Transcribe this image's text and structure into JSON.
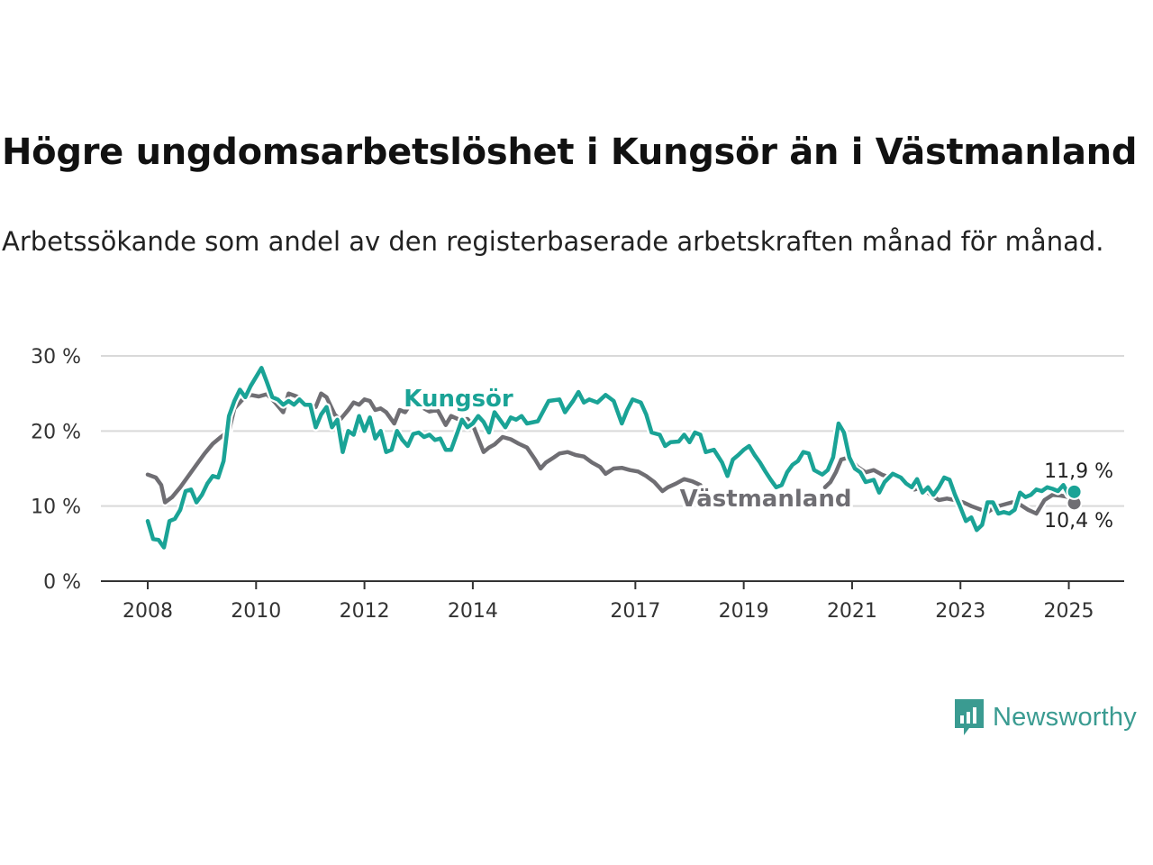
{
  "title": "Högre ungdomsarbetslöshet i Kungsör än i Västmanland",
  "subtitle": "Arbetssökande som andel av den registerbaserade arbetskraften månad för månad.",
  "brand": {
    "name": "Newsworthy",
    "icon": "newsworthy-logo-icon",
    "color": "#3a9b91"
  },
  "chart_data": {
    "type": "line",
    "title": "Högre ungdomsarbetslöshet i Kungsör än i Västmanland",
    "xlabel": "",
    "ylabel": "",
    "ylim": [
      0,
      30
    ],
    "yticks": [
      0,
      10,
      20,
      30
    ],
    "ytick_labels": [
      "0 %",
      "10 %",
      "20 %",
      "30 %"
    ],
    "xticks": [
      2008,
      2010,
      2012,
      2014,
      2017,
      2019,
      2021,
      2023,
      2025
    ],
    "xtick_labels": [
      "2008",
      "2010",
      "2012",
      "2014",
      "2017",
      "2019",
      "2021",
      "2023",
      "2025"
    ],
    "grid": true,
    "legend": "inline labels",
    "series": [
      {
        "name": "Kungsör",
        "color": "#1aa396",
        "end_label": "11,9 %",
        "points": [
          [
            2008.0,
            8.0
          ],
          [
            2008.1,
            5.6
          ],
          [
            2008.2,
            5.5
          ],
          [
            2008.3,
            4.5
          ],
          [
            2008.4,
            8.0
          ],
          [
            2008.5,
            8.3
          ],
          [
            2008.6,
            9.5
          ],
          [
            2008.7,
            12.0
          ],
          [
            2008.8,
            12.2
          ],
          [
            2008.9,
            10.5
          ],
          [
            2009.0,
            11.5
          ],
          [
            2009.1,
            13.0
          ],
          [
            2009.2,
            14.0
          ],
          [
            2009.3,
            13.8
          ],
          [
            2009.4,
            16.0
          ],
          [
            2009.5,
            22.0
          ],
          [
            2009.6,
            24.0
          ],
          [
            2009.7,
            25.5
          ],
          [
            2009.8,
            24.5
          ],
          [
            2009.9,
            26.0
          ],
          [
            2010.0,
            27.2
          ],
          [
            2010.1,
            28.4
          ],
          [
            2010.2,
            26.5
          ],
          [
            2010.3,
            24.5
          ],
          [
            2010.4,
            24.2
          ],
          [
            2010.5,
            23.5
          ],
          [
            2010.6,
            24.0
          ],
          [
            2010.7,
            23.5
          ],
          [
            2010.8,
            24.2
          ],
          [
            2010.9,
            23.5
          ],
          [
            2011.0,
            23.5
          ],
          [
            2011.1,
            20.5
          ],
          [
            2011.2,
            22.2
          ],
          [
            2011.3,
            23.2
          ],
          [
            2011.4,
            20.5
          ],
          [
            2011.5,
            21.5
          ],
          [
            2011.6,
            17.2
          ],
          [
            2011.7,
            20.0
          ],
          [
            2011.8,
            19.5
          ],
          [
            2011.9,
            22.0
          ],
          [
            2012.0,
            20.0
          ],
          [
            2012.1,
            21.8
          ],
          [
            2012.2,
            19.0
          ],
          [
            2012.3,
            20.0
          ],
          [
            2012.4,
            17.2
          ],
          [
            2012.5,
            17.5
          ],
          [
            2012.6,
            20.0
          ],
          [
            2012.7,
            18.8
          ],
          [
            2012.8,
            18.0
          ],
          [
            2012.9,
            19.6
          ],
          [
            2013.0,
            19.8
          ],
          [
            2013.1,
            19.2
          ],
          [
            2013.2,
            19.5
          ],
          [
            2013.3,
            18.8
          ],
          [
            2013.4,
            19.0
          ],
          [
            2013.5,
            17.5
          ],
          [
            2013.6,
            17.5
          ],
          [
            2013.7,
            19.5
          ],
          [
            2013.8,
            21.5
          ],
          [
            2013.9,
            20.5
          ],
          [
            2014.0,
            21.0
          ],
          [
            2014.1,
            22.0
          ],
          [
            2014.2,
            21.2
          ],
          [
            2014.3,
            19.8
          ],
          [
            2014.4,
            22.5
          ],
          [
            2014.5,
            21.5
          ],
          [
            2014.6,
            20.5
          ],
          [
            2014.7,
            21.8
          ],
          [
            2014.8,
            21.5
          ],
          [
            2014.9,
            22.0
          ],
          [
            2015.0,
            21.0
          ],
          [
            2015.2,
            21.3
          ],
          [
            2015.4,
            24.0
          ],
          [
            2015.6,
            24.2
          ],
          [
            2015.7,
            22.5
          ],
          [
            2015.85,
            24.0
          ],
          [
            2015.95,
            25.2
          ],
          [
            2016.05,
            23.8
          ],
          [
            2016.15,
            24.2
          ],
          [
            2016.3,
            23.8
          ],
          [
            2016.45,
            24.8
          ],
          [
            2016.6,
            24.0
          ],
          [
            2016.75,
            21.0
          ],
          [
            2016.85,
            22.8
          ],
          [
            2016.95,
            24.2
          ],
          [
            2017.1,
            23.8
          ],
          [
            2017.2,
            22.2
          ],
          [
            2017.3,
            19.8
          ],
          [
            2017.45,
            19.5
          ],
          [
            2017.55,
            18.0
          ],
          [
            2017.65,
            18.5
          ],
          [
            2017.8,
            18.6
          ],
          [
            2017.9,
            19.5
          ],
          [
            2018.0,
            18.5
          ],
          [
            2018.1,
            19.8
          ],
          [
            2018.2,
            19.5
          ],
          [
            2018.3,
            17.2
          ],
          [
            2018.45,
            17.5
          ],
          [
            2018.6,
            15.8
          ],
          [
            2018.7,
            14.0
          ],
          [
            2018.8,
            16.2
          ],
          [
            2018.9,
            16.8
          ],
          [
            2019.0,
            17.5
          ],
          [
            2019.1,
            18.0
          ],
          [
            2019.2,
            16.8
          ],
          [
            2019.3,
            15.8
          ],
          [
            2019.4,
            14.6
          ],
          [
            2019.5,
            13.5
          ],
          [
            2019.6,
            12.5
          ],
          [
            2019.7,
            12.8
          ],
          [
            2019.8,
            14.5
          ],
          [
            2019.9,
            15.5
          ],
          [
            2020.0,
            16.0
          ],
          [
            2020.1,
            17.2
          ],
          [
            2020.2,
            17.0
          ],
          [
            2020.3,
            14.8
          ],
          [
            2020.45,
            14.2
          ],
          [
            2020.55,
            14.8
          ],
          [
            2020.65,
            16.5
          ],
          [
            2020.75,
            21.0
          ],
          [
            2020.85,
            19.8
          ],
          [
            2020.95,
            16.5
          ],
          [
            2021.05,
            15.0
          ],
          [
            2021.15,
            14.5
          ],
          [
            2021.25,
            13.2
          ],
          [
            2021.4,
            13.5
          ],
          [
            2021.5,
            11.8
          ],
          [
            2021.6,
            13.2
          ],
          [
            2021.75,
            14.3
          ],
          [
            2021.9,
            13.8
          ],
          [
            2022.0,
            13.0
          ],
          [
            2022.1,
            12.5
          ],
          [
            2022.2,
            13.6
          ],
          [
            2022.3,
            11.8
          ],
          [
            2022.4,
            12.5
          ],
          [
            2022.5,
            11.5
          ],
          [
            2022.6,
            12.5
          ],
          [
            2022.7,
            13.8
          ],
          [
            2022.8,
            13.5
          ],
          [
            2022.9,
            11.5
          ],
          [
            2023.0,
            9.8
          ],
          [
            2023.1,
            8.0
          ],
          [
            2023.2,
            8.5
          ],
          [
            2023.3,
            6.8
          ],
          [
            2023.4,
            7.5
          ],
          [
            2023.5,
            10.5
          ],
          [
            2023.6,
            10.5
          ],
          [
            2023.7,
            9.0
          ],
          [
            2023.8,
            9.2
          ],
          [
            2023.9,
            9.0
          ],
          [
            2024.0,
            9.5
          ],
          [
            2024.1,
            11.8
          ],
          [
            2024.2,
            11.2
          ],
          [
            2024.3,
            11.5
          ],
          [
            2024.4,
            12.2
          ],
          [
            2024.5,
            12.0
          ],
          [
            2024.6,
            12.5
          ],
          [
            2024.7,
            12.3
          ],
          [
            2024.8,
            12.0
          ],
          [
            2024.9,
            12.8
          ],
          [
            2025.0,
            11.5
          ],
          [
            2025.1,
            11.9
          ]
        ]
      },
      {
        "name": "Västmanland",
        "color": "#6f6e73",
        "end_label": "10,4 %",
        "points": [
          [
            2008.0,
            14.2
          ],
          [
            2008.15,
            13.8
          ],
          [
            2008.25,
            12.8
          ],
          [
            2008.32,
            10.5
          ],
          [
            2008.45,
            11.2
          ],
          [
            2008.6,
            12.5
          ],
          [
            2008.75,
            14.0
          ],
          [
            2008.9,
            15.5
          ],
          [
            2009.05,
            17.0
          ],
          [
            2009.2,
            18.3
          ],
          [
            2009.35,
            19.2
          ],
          [
            2009.5,
            20.0
          ],
          [
            2009.6,
            23.0
          ],
          [
            2009.75,
            24.2
          ],
          [
            2009.9,
            24.8
          ],
          [
            2010.05,
            24.6
          ],
          [
            2010.2,
            24.9
          ],
          [
            2010.35,
            23.8
          ],
          [
            2010.5,
            22.5
          ],
          [
            2010.6,
            25.0
          ],
          [
            2010.75,
            24.6
          ],
          [
            2010.9,
            23.8
          ],
          [
            2011.0,
            23.4
          ],
          [
            2011.1,
            23.2
          ],
          [
            2011.2,
            25.0
          ],
          [
            2011.3,
            24.5
          ],
          [
            2011.45,
            22.2
          ],
          [
            2011.55,
            21.5
          ],
          [
            2011.7,
            22.8
          ],
          [
            2011.8,
            23.8
          ],
          [
            2011.9,
            23.5
          ],
          [
            2012.0,
            24.2
          ],
          [
            2012.1,
            24.0
          ],
          [
            2012.2,
            22.8
          ],
          [
            2012.3,
            23.0
          ],
          [
            2012.4,
            22.5
          ],
          [
            2012.55,
            21.0
          ],
          [
            2012.65,
            22.8
          ],
          [
            2012.75,
            22.5
          ],
          [
            2012.85,
            23.6
          ],
          [
            2013.0,
            24.0
          ],
          [
            2013.1,
            23.0
          ],
          [
            2013.2,
            22.6
          ],
          [
            2013.35,
            22.8
          ],
          [
            2013.5,
            20.8
          ],
          [
            2013.6,
            22.0
          ],
          [
            2013.75,
            21.5
          ],
          [
            2013.9,
            21.6
          ],
          [
            2014.0,
            20.8
          ],
          [
            2014.1,
            19.0
          ],
          [
            2014.2,
            17.2
          ],
          [
            2014.3,
            17.8
          ],
          [
            2014.4,
            18.2
          ],
          [
            2014.55,
            19.2
          ],
          [
            2014.7,
            18.9
          ],
          [
            2014.85,
            18.3
          ],
          [
            2015.0,
            17.8
          ],
          [
            2015.15,
            16.2
          ],
          [
            2015.25,
            15.0
          ],
          [
            2015.35,
            15.8
          ],
          [
            2015.5,
            16.5
          ],
          [
            2015.6,
            17.0
          ],
          [
            2015.75,
            17.2
          ],
          [
            2015.9,
            16.8
          ],
          [
            2016.05,
            16.6
          ],
          [
            2016.2,
            15.8
          ],
          [
            2016.35,
            15.2
          ],
          [
            2016.45,
            14.3
          ],
          [
            2016.6,
            15.0
          ],
          [
            2016.75,
            15.1
          ],
          [
            2016.9,
            14.8
          ],
          [
            2017.05,
            14.6
          ],
          [
            2017.2,
            14.0
          ],
          [
            2017.35,
            13.2
          ],
          [
            2017.5,
            12.0
          ],
          [
            2017.6,
            12.5
          ],
          [
            2017.75,
            13.0
          ],
          [
            2017.9,
            13.6
          ],
          [
            2018.05,
            13.3
          ],
          [
            2018.2,
            12.8
          ]
        ]
      },
      {
        "name": "",
        "color": "#6f6e73",
        "points": [
          [
            2020.5,
            12.5
          ],
          [
            2020.6,
            13.2
          ],
          [
            2020.7,
            14.5
          ],
          [
            2020.8,
            16.2
          ],
          [
            2020.95,
            16.5
          ],
          [
            2021.1,
            15.2
          ],
          [
            2021.25,
            14.5
          ],
          [
            2021.4,
            14.8
          ],
          [
            2021.55,
            14.2
          ],
          [
            2021.7,
            13.8
          ],
          [
            2021.85,
            14.2
          ],
          [
            2022.0,
            12.8
          ],
          [
            2022.15,
            12.2
          ],
          [
            2022.3,
            12.5
          ],
          [
            2022.45,
            11.5
          ],
          [
            2022.6,
            10.8
          ],
          [
            2022.75,
            11.0
          ],
          [
            2022.9,
            10.8
          ],
          [
            2023.05,
            10.5
          ],
          [
            2023.2,
            10.0
          ],
          [
            2023.35,
            9.6
          ],
          [
            2023.5,
            9.2
          ],
          [
            2023.65,
            9.9
          ],
          [
            2023.8,
            10.2
          ],
          [
            2023.95,
            10.5
          ],
          [
            2024.1,
            10.2
          ],
          [
            2024.25,
            9.5
          ],
          [
            2024.4,
            9.0
          ],
          [
            2024.55,
            10.8
          ],
          [
            2024.7,
            11.5
          ],
          [
            2024.85,
            11.4
          ],
          [
            2025.0,
            11.2
          ],
          [
            2025.1,
            10.4
          ]
        ]
      }
    ]
  }
}
